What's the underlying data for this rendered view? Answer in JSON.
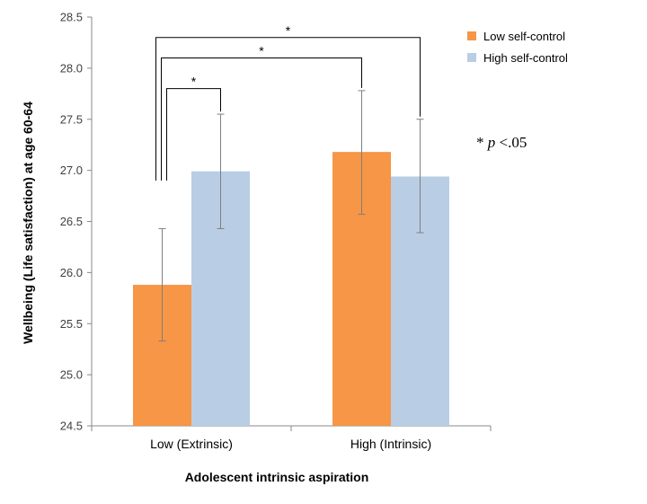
{
  "chart_data": {
    "type": "bar",
    "categories": [
      "Low (Extrinsic)",
      "High (Intrinsic)"
    ],
    "series": [
      {
        "name": "Low self-control",
        "color": "#F79646",
        "values": [
          25.88,
          27.18
        ],
        "error_low": [
          25.33,
          26.57
        ],
        "error_high": [
          26.43,
          27.78
        ]
      },
      {
        "name": "High self-control",
        "color": "#B9CDE5",
        "values": [
          26.99,
          26.94
        ],
        "error_low": [
          26.43,
          26.39
        ],
        "error_high": [
          27.55,
          27.5
        ]
      }
    ],
    "ylim": [
      24.5,
      28.5
    ],
    "yticks": [
      "24.5",
      "25.0",
      "25.5",
      "26.0",
      "26.5",
      "27.0",
      "27.5",
      "28.0",
      "28.5"
    ],
    "ylabel": "Wellbeing (Life satisfaction) at age 60-64",
    "xlabel": "Adolescent  intrinsic aspiration",
    "grid": false,
    "legend": "top-right",
    "significance": [
      {
        "from": "Low (Extrinsic) / Low self-control",
        "to": "Low (Extrinsic) / High self-control",
        "label": "*"
      },
      {
        "from": "Low (Extrinsic) / Low self-control",
        "to": "High (Intrinsic) / Low self-control",
        "label": "*"
      },
      {
        "from": "Low (Extrinsic) / Low self-control",
        "to": "High (Intrinsic) / High self-control",
        "label": "*"
      }
    ],
    "annotation": {
      "prefix": "* ",
      "italic": "p",
      "suffix": " <.05"
    }
  }
}
